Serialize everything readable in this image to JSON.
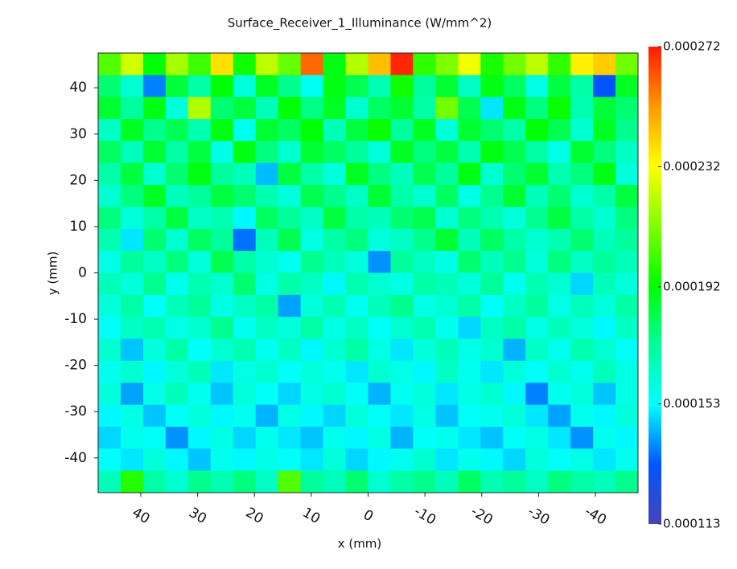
{
  "chart_data": {
    "type": "heatmap",
    "title": "Surface_Receiver_1_Illuminance (W/mm^2)",
    "xlabel": "x (mm)",
    "ylabel": "y (mm)",
    "xlim": [
      47.5,
      -47.5
    ],
    "ylim": [
      -47.5,
      47.5
    ],
    "xticks": [
      40,
      30,
      20,
      10,
      0,
      -10,
      -20,
      -30,
      -40
    ],
    "yticks": [
      40,
      30,
      20,
      10,
      0,
      -10,
      -20,
      -30,
      -40
    ],
    "clim": [
      0.000113,
      0.000272
    ],
    "cticks": [
      0.000113,
      0.000153,
      0.000192,
      0.000232,
      0.000272
    ],
    "colorscale": [
      "#4545b8",
      "#0055ff",
      "#00ffff",
      "#00ff99",
      "#00ff00",
      "#80ff00",
      "#ffff00",
      "#ff9900",
      "#ff1a00"
    ],
    "z": [
      [
        0.000205,
        0.000225,
        0.000192,
        0.000218,
        0.000202,
        0.000238,
        0.000195,
        0.000222,
        0.000208,
        0.00026,
        0.00019,
        0.00022,
        0.000245,
        0.00027,
        0.0002,
        0.000212,
        0.00023,
        0.000196,
        0.00021,
        0.000222,
        0.0002,
        0.000235,
        0.000242,
        0.00021
      ],
      [
        0.000178,
        0.000162,
        0.000138,
        0.000185,
        0.00017,
        0.000192,
        0.00016,
        0.000188,
        0.000174,
        0.000155,
        0.00019,
        0.000182,
        0.000168,
        0.000195,
        0.000172,
        0.000186,
        0.000164,
        0.00019,
        0.00018,
        0.000158,
        0.000184,
        0.00017,
        0.000132,
        0.000188
      ],
      [
        0.000186,
        0.000172,
        0.00019,
        0.00016,
        0.00022,
        0.000178,
        0.000184,
        0.000166,
        0.000192,
        0.000175,
        0.000188,
        0.000162,
        0.00018,
        0.000186,
        0.00017,
        0.00021,
        0.000182,
        0.00015,
        0.00019,
        0.000176,
        0.000194,
        0.000168,
        0.000185,
        0.000178
      ],
      [
        0.000164,
        0.000188,
        0.000174,
        0.000182,
        0.000168,
        0.00019,
        0.000156,
        0.000186,
        0.00018,
        0.000192,
        0.000166,
        0.000184,
        0.000194,
        0.000172,
        0.000188,
        0.00016,
        0.000186,
        0.000178,
        0.00017,
        0.000192,
        0.000182,
        0.000162,
        0.000188,
        0.000174
      ],
      [
        0.00018,
        0.000166,
        0.000186,
        0.00017,
        0.000184,
        0.000158,
        0.00019,
        0.000176,
        0.000162,
        0.000186,
        0.00018,
        0.000172,
        0.00016,
        0.000188,
        0.000176,
        0.000184,
        0.000168,
        0.00019,
        0.000182,
        0.00017,
        0.000158,
        0.000186,
        0.000176,
        0.000164
      ],
      [
        0.00017,
        0.000184,
        0.000162,
        0.000178,
        0.00019,
        0.000172,
        0.000166,
        0.000145,
        0.000184,
        0.00017,
        0.00016,
        0.000188,
        0.000176,
        0.000166,
        0.000182,
        0.000172,
        0.00019,
        0.000162,
        0.000178,
        0.000186,
        0.000168,
        0.000176,
        0.00019,
        0.00016
      ],
      [
        0.000162,
        0.000176,
        0.000188,
        0.000166,
        0.000172,
        0.000184,
        0.000178,
        0.000168,
        0.00016,
        0.000182,
        0.000174,
        0.000164,
        0.000186,
        0.00017,
        0.000162,
        0.00018,
        0.000158,
        0.000174,
        0.000186,
        0.000166,
        0.000178,
        0.000162,
        0.00017,
        0.000184
      ],
      [
        0.000176,
        0.00016,
        0.00017,
        0.000184,
        0.000164,
        0.000168,
        0.000152,
        0.00018,
        0.000172,
        0.000164,
        0.000184,
        0.00017,
        0.000166,
        0.000178,
        0.000182,
        0.000162,
        0.000176,
        0.000168,
        0.00016,
        0.000174,
        0.000184,
        0.00017,
        0.000162,
        0.000176
      ],
      [
        0.000168,
        0.00015,
        0.000178,
        0.000162,
        0.00018,
        0.000172,
        0.000136,
        0.000166,
        0.000182,
        0.000158,
        0.00017,
        0.000176,
        0.00016,
        0.000164,
        0.000174,
        0.000186,
        0.000166,
        0.00018,
        0.00017,
        0.000162,
        0.000168,
        0.000178,
        0.000166,
        0.000172
      ],
      [
        0.000158,
        0.000172,
        0.000164,
        0.000176,
        0.00016,
        0.000182,
        0.00017,
        0.000162,
        0.000156,
        0.000174,
        0.000166,
        0.00016,
        0.00014,
        0.000172,
        0.000164,
        0.000158,
        0.000178,
        0.000166,
        0.000174,
        0.00016,
        0.000176,
        0.000164,
        0.000172,
        0.000166
      ],
      [
        0.000166,
        0.00016,
        0.000174,
        0.000156,
        0.000168,
        0.000162,
        0.000178,
        0.000158,
        0.00017,
        0.000164,
        0.000152,
        0.000168,
        0.000162,
        0.000158,
        0.00017,
        0.000166,
        0.00016,
        0.000172,
        0.000156,
        0.000168,
        0.000162,
        0.000148,
        0.000166,
        0.00016
      ],
      [
        0.00016,
        0.00017,
        0.000154,
        0.000166,
        0.000172,
        0.000158,
        0.000164,
        0.00017,
        0.000142,
        0.00016,
        0.000168,
        0.000156,
        0.000166,
        0.000174,
        0.000158,
        0.000162,
        0.00017,
        0.000154,
        0.000164,
        0.000172,
        0.000158,
        0.000166,
        0.00016,
        0.00017
      ],
      [
        0.000154,
        0.000164,
        0.000168,
        0.000158,
        0.000162,
        0.000174,
        0.000156,
        0.000164,
        0.00016,
        0.00017,
        0.000158,
        0.000164,
        0.000154,
        0.000162,
        0.000168,
        0.000156,
        0.000148,
        0.000164,
        0.00017,
        0.000158,
        0.000166,
        0.00016,
        0.000152,
        0.000164
      ],
      [
        0.000162,
        0.000146,
        0.00016,
        0.00017,
        0.000154,
        0.000162,
        0.000168,
        0.000156,
        0.000164,
        0.000152,
        0.000162,
        0.00017,
        0.000158,
        0.00015,
        0.00016,
        0.000166,
        0.000158,
        0.000162,
        0.000144,
        0.000164,
        0.000156,
        0.000168,
        0.000162,
        0.000154
      ],
      [
        0.000156,
        0.000162,
        0.000152,
        0.00016,
        0.000166,
        0.00015,
        0.000158,
        0.000162,
        0.000154,
        0.00016,
        0.000156,
        0.00015,
        0.000162,
        0.000158,
        0.000152,
        0.000164,
        0.000156,
        0.00015,
        0.00016,
        0.000154,
        0.000162,
        0.000156,
        0.000166,
        0.000158
      ],
      [
        0.00016,
        0.000142,
        0.000158,
        0.000166,
        0.000156,
        0.000146,
        0.00016,
        0.000154,
        0.000148,
        0.000158,
        0.000162,
        0.000154,
        0.000144,
        0.000156,
        0.00016,
        0.00015,
        0.000158,
        0.000162,
        0.000152,
        0.000138,
        0.000156,
        0.00016,
        0.000146,
        0.000158
      ],
      [
        0.000152,
        0.000158,
        0.000146,
        0.000154,
        0.00016,
        0.000152,
        0.000156,
        0.000144,
        0.000158,
        0.000152,
        0.000148,
        0.00016,
        0.000154,
        0.00015,
        0.000158,
        0.000146,
        0.000154,
        0.000156,
        0.00016,
        0.00015,
        0.000142,
        0.000156,
        0.000152,
        0.00016
      ],
      [
        0.000148,
        0.000156,
        0.000154,
        0.00014,
        0.000152,
        0.000158,
        0.000148,
        0.000156,
        0.00015,
        0.000146,
        0.000156,
        0.000152,
        0.000158,
        0.000144,
        0.000154,
        0.000156,
        0.00015,
        0.000146,
        0.000154,
        0.000158,
        0.00015,
        0.00014,
        0.000156,
        0.000152
      ],
      [
        0.000154,
        0.00015,
        0.00016,
        0.000152,
        0.000146,
        0.000156,
        0.000152,
        0.000158,
        0.000154,
        0.00015,
        0.00016,
        0.000148,
        0.000152,
        0.000156,
        0.000162,
        0.00015,
        0.000156,
        0.000152,
        0.000148,
        0.00016,
        0.000154,
        0.000158,
        0.00015,
        0.000156
      ],
      [
        0.000166,
        0.000198,
        0.00017,
        0.000162,
        0.000174,
        0.000168,
        0.000176,
        0.000164,
        0.000205,
        0.000172,
        0.000166,
        0.000178,
        0.000162,
        0.00017,
        0.000174,
        0.000166,
        0.00018,
        0.000168,
        0.000172,
        0.000164,
        0.000176,
        0.00017,
        0.000166,
        0.000174
      ]
    ]
  }
}
